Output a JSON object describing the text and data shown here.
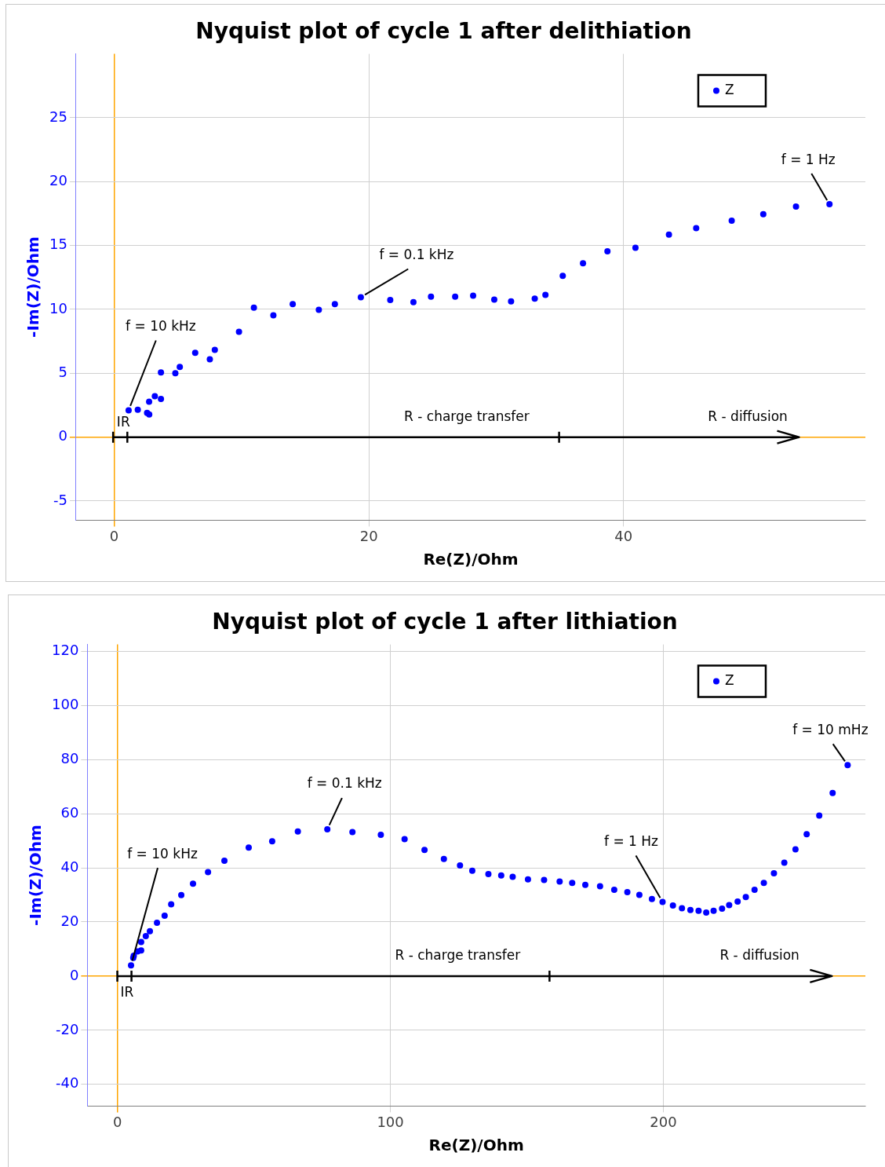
{
  "chart_data": [
    {
      "type": "scatter",
      "title": "Nyquist plot of cycle 1 after delithiation",
      "xlabel": "Re(Z)/Ohm",
      "ylabel": "-Im(Z)/Ohm",
      "series": [
        {
          "name": "Z",
          "color": "#0000ff",
          "x": [
            1.13,
            1.85,
            2.58,
            2.75,
            2.74,
            3.19,
            3.67,
            3.67,
            4.8,
            5.15,
            6.36,
            7.51,
            7.9,
            9.8,
            10.97,
            12.5,
            14.02,
            16.07,
            17.33,
            19.37,
            21.68,
            23.5,
            24.88,
            26.78,
            28.19,
            29.85,
            31.17,
            33.03,
            33.87,
            35.23,
            36.82,
            38.74,
            40.94,
            43.57,
            45.71,
            48.5,
            50.98,
            53.55,
            56.18
          ],
          "values": [
            2.1,
            2.15,
            1.9,
            1.77,
            2.77,
            3.2,
            2.99,
            5.06,
            5.01,
            5.5,
            6.6,
            6.1,
            6.83,
            8.25,
            10.13,
            9.53,
            10.42,
            9.96,
            10.42,
            10.95,
            10.73,
            10.57,
            11.0,
            11.0,
            11.08,
            10.76,
            10.63,
            10.85,
            11.13,
            12.62,
            13.61,
            14.54,
            14.82,
            15.86,
            16.36,
            16.94,
            17.45,
            18.05,
            18.23
          ]
        }
      ],
      "xlim": [
        -3,
        59
      ],
      "xticks": [
        0,
        20,
        40
      ],
      "ylim": [
        -6.5,
        30
      ],
      "yticks": [
        -5,
        0,
        5,
        10,
        15,
        20,
        25
      ],
      "grid": true,
      "legend": "top right",
      "marker": "circle",
      "annotations": [
        {
          "text": "f = 10 kHz",
          "x": 1.13,
          "y": 2.1
        },
        {
          "text": "f = 0.1 kHz",
          "x": 19.37,
          "y": 10.95
        },
        {
          "text": "f = 1 Hz",
          "x": 56.18,
          "y": 18.23
        },
        "IR",
        "R - charge transfer",
        "R - diffusion"
      ]
    },
    {
      "type": "scatter",
      "title": "Nyquist plot of cycle 1 after lithiation",
      "xlabel": "Re(Z)/Ohm",
      "ylabel": "-Im(Z)/Ohm",
      "series": [
        {
          "name": "Z",
          "color": "#0000ff",
          "x": [
            5.0,
            5.8,
            6.0,
            7.4,
            8.7,
            8.7,
            10.4,
            11.9,
            14.5,
            17.3,
            19.7,
            23.4,
            27.7,
            33.2,
            39.2,
            48.1,
            56.7,
            66.1,
            76.9,
            86.1,
            96.5,
            105.2,
            112.5,
            119.6,
            125.5,
            130.0,
            135.9,
            140.6,
            144.8,
            150.4,
            156.3,
            162.0,
            166.6,
            171.4,
            176.8,
            182.0,
            186.8,
            191.2,
            195.8,
            199.7,
            203.5,
            206.8,
            209.9,
            212.9,
            215.7,
            218.4,
            221.5,
            224.1,
            227.2,
            230.2,
            233.4,
            236.8,
            240.5,
            244.3,
            248.4,
            252.5,
            257.1,
            262.0,
            267.5
          ],
          "values": [
            4.0,
            6.7,
            7.5,
            9.1,
            9.5,
            12.6,
            14.8,
            16.6,
            19.7,
            22.3,
            26.5,
            29.9,
            34.1,
            38.4,
            42.6,
            47.5,
            49.8,
            53.4,
            54.2,
            53.2,
            52.2,
            50.6,
            46.6,
            43.3,
            40.9,
            38.9,
            37.7,
            37.2,
            36.7,
            35.7,
            35.5,
            34.9,
            34.4,
            33.7,
            33.2,
            31.9,
            31.0,
            30.0,
            28.5,
            27.4,
            26.1,
            25.1,
            24.4,
            24.1,
            23.5,
            24.1,
            24.9,
            26.2,
            27.5,
            29.2,
            31.9,
            34.4,
            38.0,
            41.9,
            46.8,
            52.4,
            59.3,
            67.6,
            77.9
          ]
        }
      ],
      "xlim": [
        -11,
        274
      ],
      "xticks": [
        0,
        100,
        200
      ],
      "ylim": [
        -48,
        122.5
      ],
      "yticks": [
        -40,
        -20,
        0,
        20,
        40,
        60,
        80,
        100,
        120
      ],
      "grid": true,
      "legend": "top right",
      "marker": "circle",
      "annotations": [
        {
          "text": "f = 10 kHz",
          "x": 5.0,
          "y": 4.0
        },
        {
          "text": "f = 0.1 kHz",
          "x": 76.9,
          "y": 54.2
        },
        {
          "text": "f = 1 Hz",
          "x": 199.7,
          "y": 27.4
        },
        {
          "text": "f = 10 mHz",
          "x": 267.5,
          "y": 77.9
        },
        "IR",
        "R - charge transfer",
        "R - diffusion"
      ]
    }
  ]
}
